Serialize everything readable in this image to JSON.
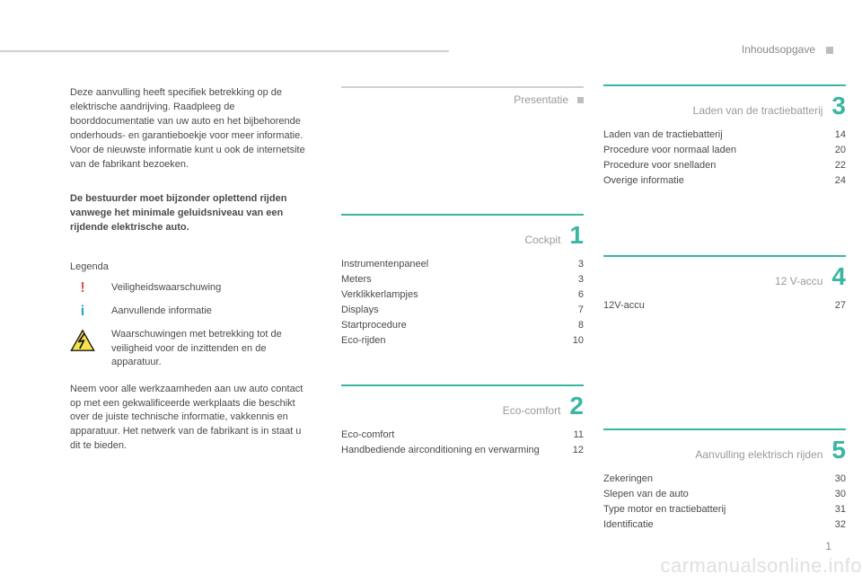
{
  "header": {
    "label": "Inhoudsopgave"
  },
  "page_number": "1",
  "watermark": "carmanualsonline.info",
  "colors": {
    "teal": "#3bb6a3",
    "grey_rule": "#cfcfcf",
    "text": "#4a4a4a",
    "muted": "#9a9a9a",
    "red": "#d9534f",
    "cyan": "#2aa3c9",
    "watermark": "#e0e0e0"
  },
  "intro": {
    "p1": "Deze aanvulling heeft specifiek betrekking op de elektrische aandrijving. Raadpleeg de boorddocumentatie van uw auto en het bijbehorende onderhouds- en garantieboekje voor meer informatie. Voor de nieuwste informatie kunt u ook de internetsite van de fabrikant bezoeken.",
    "p2": "De bestuurder moet bijzonder oplettend rijden vanwege het minimale geluidsniveau van een rijdende elektrische auto.",
    "legenda_title": "Legenda",
    "legend": {
      "safety": "Veiligheidswaarschuwing",
      "info": "Aanvullende informatie",
      "warn": "Waarschuwingen met betrekking tot de veiligheid voor de inzittenden en de apparatuur."
    },
    "p3": "Neem voor alle werkzaamheden aan uw auto contact op met een gekwalificeerde werkplaats die beschikt over de juiste technische informatie, vakkennis en apparatuur. Het netwerk van de fabrikant is in staat u dit te bieden."
  },
  "mid_sections": [
    {
      "num": ".",
      "num_style": "dot",
      "rule_style": "grey",
      "title": "Presentatie",
      "items": []
    },
    {
      "num": "1",
      "num_style": "teal",
      "rule_style": "teal",
      "title": "Cockpit",
      "items": [
        {
          "label": "Instrumentenpaneel",
          "page": "3"
        },
        {
          "label": "Meters",
          "page": "3"
        },
        {
          "label": "Verklikkerlampjes",
          "page": "6"
        },
        {
          "label": "Displays",
          "page": "7"
        },
        {
          "label": "Startprocedure",
          "page": "8"
        },
        {
          "label": "Eco-rijden",
          "page": "10"
        }
      ]
    },
    {
      "num": "2",
      "num_style": "teal",
      "rule_style": "teal",
      "title": "Eco-comfort",
      "items": [
        {
          "label": "Eco-comfort",
          "page": "11"
        },
        {
          "label": "Handbediende airconditioning en verwarming",
          "page": "12"
        }
      ]
    }
  ],
  "right_sections": [
    {
      "num": "3",
      "num_style": "teal",
      "rule_style": "teal",
      "title": "Laden van de tractiebatterij",
      "items": [
        {
          "label": "Laden van de tractiebatterij",
          "page": "14"
        },
        {
          "label": "Procedure voor normaal laden",
          "page": "20"
        },
        {
          "label": "Procedure voor snelladen",
          "page": "22"
        },
        {
          "label": "Overige informatie",
          "page": "24"
        }
      ]
    },
    {
      "num": "4",
      "num_style": "teal",
      "rule_style": "teal",
      "title": "12 V-accu",
      "items": [
        {
          "label": "12V-accu",
          "page": "27"
        }
      ]
    },
    {
      "num": "5",
      "num_style": "teal",
      "rule_style": "teal",
      "title": "Aanvulling elektrisch rijden",
      "items": [
        {
          "label": "Zekeringen",
          "page": "30"
        },
        {
          "label": "Slepen van de auto",
          "page": "30"
        },
        {
          "label": "Type motor en tractiebatterij",
          "page": "31"
        },
        {
          "label": "Identificatie",
          "page": "32"
        }
      ]
    }
  ]
}
